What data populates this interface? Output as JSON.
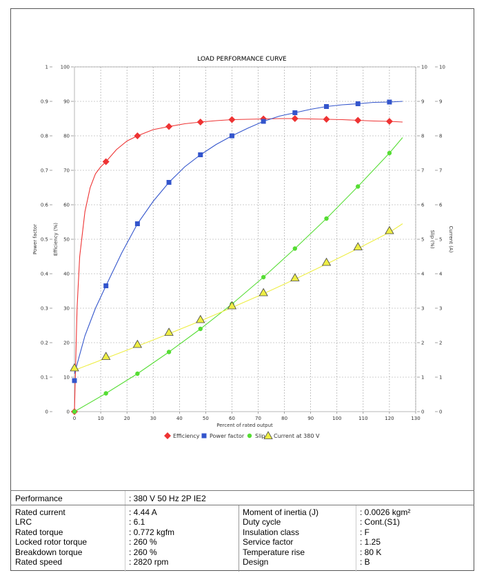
{
  "chart_data": {
    "type": "line",
    "title": "LOAD PERFORMANCE CURVE",
    "xlabel": "Percent of rated output",
    "xlim": [
      0,
      130
    ],
    "x_ticks": [
      "0",
      "10",
      "20",
      "30",
      "40",
      "50",
      "60",
      "70",
      "80",
      "90",
      "100",
      "110",
      "120",
      "130"
    ],
    "axes": {
      "power_factor": {
        "label": "Power factor",
        "range": [
          0,
          1
        ],
        "ticks": [
          "0",
          "0.1",
          "0.2",
          "0.3",
          "0.4",
          "0.5",
          "0.6",
          "0.7",
          "0.8",
          "0.9",
          "1"
        ]
      },
      "efficiency": {
        "label": "Efficiency (%)",
        "range": [
          0,
          100
        ],
        "ticks": [
          "0",
          "10",
          "20",
          "30",
          "40",
          "50",
          "60",
          "70",
          "80",
          "90",
          "100"
        ]
      },
      "slip": {
        "label": "Slip (%)",
        "range": [
          0,
          10
        ],
        "ticks": [
          "0",
          "1",
          "2",
          "3",
          "4",
          "5",
          "6",
          "7",
          "8",
          "9",
          "10"
        ]
      },
      "current": {
        "label": "Current (A)",
        "range": [
          0,
          10
        ],
        "ticks": [
          "0",
          "1",
          "2",
          "3",
          "4",
          "5",
          "6",
          "7",
          "8",
          "9",
          "10"
        ]
      }
    },
    "grid": true,
    "legend_position": "bottom",
    "series": [
      {
        "name": "Efficiency",
        "axis": "efficiency",
        "color": "#ee3333",
        "marker": "diamond",
        "points": [
          [
            0,
            0
          ],
          [
            12,
            72.5
          ],
          [
            24,
            80
          ],
          [
            36,
            82.7
          ],
          [
            48,
            84
          ],
          [
            60,
            84.7
          ],
          [
            72,
            84.9
          ],
          [
            84,
            85
          ],
          [
            96,
            84.8
          ],
          [
            108,
            84.5
          ],
          [
            120,
            84.2
          ]
        ],
        "curve": [
          [
            0,
            0
          ],
          [
            1,
            30
          ],
          [
            2,
            45
          ],
          [
            4,
            58
          ],
          [
            6,
            65
          ],
          [
            8,
            69
          ],
          [
            10,
            71
          ],
          [
            12,
            72.5
          ],
          [
            16,
            76
          ],
          [
            20,
            78.5
          ],
          [
            24,
            80
          ],
          [
            30,
            81.8
          ],
          [
            36,
            82.7
          ],
          [
            42,
            83.5
          ],
          [
            48,
            84
          ],
          [
            54,
            84.4
          ],
          [
            60,
            84.7
          ],
          [
            66,
            84.8
          ],
          [
            72,
            84.9
          ],
          [
            78,
            85
          ],
          [
            84,
            85
          ],
          [
            90,
            84.9
          ],
          [
            96,
            84.8
          ],
          [
            102,
            84.7
          ],
          [
            108,
            84.5
          ],
          [
            114,
            84.3
          ],
          [
            120,
            84.2
          ],
          [
            125,
            84
          ]
        ]
      },
      {
        "name": "Power factor",
        "axis": "power_factor",
        "color": "#3355cc",
        "marker": "square",
        "points": [
          [
            0,
            0.09
          ],
          [
            12,
            0.365
          ],
          [
            24,
            0.545
          ],
          [
            36,
            0.665
          ],
          [
            48,
            0.745
          ],
          [
            60,
            0.8
          ],
          [
            72,
            0.842
          ],
          [
            84,
            0.867
          ],
          [
            96,
            0.885
          ],
          [
            108,
            0.893
          ],
          [
            120,
            0.898
          ]
        ],
        "curve": [
          [
            0,
            0.11
          ],
          [
            4,
            0.22
          ],
          [
            8,
            0.3
          ],
          [
            12,
            0.365
          ],
          [
            18,
            0.46
          ],
          [
            24,
            0.545
          ],
          [
            30,
            0.61
          ],
          [
            36,
            0.665
          ],
          [
            42,
            0.71
          ],
          [
            48,
            0.745
          ],
          [
            54,
            0.775
          ],
          [
            60,
            0.8
          ],
          [
            66,
            0.822
          ],
          [
            72,
            0.842
          ],
          [
            78,
            0.857
          ],
          [
            84,
            0.867
          ],
          [
            90,
            0.877
          ],
          [
            96,
            0.885
          ],
          [
            102,
            0.89
          ],
          [
            108,
            0.893
          ],
          [
            114,
            0.897
          ],
          [
            120,
            0.898
          ],
          [
            125,
            0.9
          ]
        ]
      },
      {
        "name": "Slip",
        "axis": "slip",
        "color": "#55dd33",
        "marker": "circle",
        "points": [
          [
            0,
            0
          ],
          [
            12,
            0.53
          ],
          [
            24,
            1.1
          ],
          [
            36,
            1.73
          ],
          [
            48,
            2.4
          ],
          [
            60,
            3.12
          ],
          [
            72,
            3.9
          ],
          [
            84,
            4.73
          ],
          [
            96,
            5.6
          ],
          [
            108,
            6.53
          ],
          [
            120,
            7.5
          ]
        ],
        "curve": [
          [
            0,
            0
          ],
          [
            12,
            0.53
          ],
          [
            24,
            1.1
          ],
          [
            36,
            1.73
          ],
          [
            48,
            2.4
          ],
          [
            60,
            3.12
          ],
          [
            72,
            3.9
          ],
          [
            84,
            4.73
          ],
          [
            96,
            5.6
          ],
          [
            108,
            6.53
          ],
          [
            120,
            7.5
          ],
          [
            125,
            7.95
          ]
        ]
      },
      {
        "name": "Current at 380 V",
        "axis": "current",
        "color": "#eeee44",
        "marker": "triangle",
        "points": [
          [
            0,
            1.27
          ],
          [
            12,
            1.6
          ],
          [
            24,
            1.95
          ],
          [
            36,
            2.3
          ],
          [
            48,
            2.67
          ],
          [
            60,
            3.07
          ],
          [
            72,
            3.45
          ],
          [
            84,
            3.88
          ],
          [
            96,
            4.33
          ],
          [
            108,
            4.78
          ],
          [
            120,
            5.25
          ]
        ],
        "curve": [
          [
            0,
            1.2
          ],
          [
            12,
            1.55
          ],
          [
            24,
            1.9
          ],
          [
            36,
            2.26
          ],
          [
            48,
            2.63
          ],
          [
            60,
            3.02
          ],
          [
            72,
            3.42
          ],
          [
            84,
            3.84
          ],
          [
            96,
            4.28
          ],
          [
            108,
            4.73
          ],
          [
            120,
            5.2
          ],
          [
            125,
            5.45
          ]
        ]
      }
    ]
  },
  "table": {
    "performance_label": "Performance",
    "performance_value": ": 380 V 50 Hz 2P IE2",
    "left_rows": [
      {
        "label": "Rated current",
        "value": ": 4.44 A"
      },
      {
        "label": "LRC",
        "value": ": 6.1"
      },
      {
        "label": "Rated torque",
        "value": ": 0.772 kgfm"
      },
      {
        "label": "Locked rotor torque",
        "value": ": 260 %"
      },
      {
        "label": "Breakdown torque",
        "value": ": 260 %"
      },
      {
        "label": "Rated speed",
        "value": ": 2820 rpm"
      }
    ],
    "right_rows": [
      {
        "label": "Moment of inertia (J)",
        "value": ": 0.0026 kgm²"
      },
      {
        "label": "Duty cycle",
        "value": ": Cont.(S1)"
      },
      {
        "label": "Insulation class",
        "value": ": F"
      },
      {
        "label": "Service factor",
        "value": ": 1.25"
      },
      {
        "label": "Temperature rise",
        "value": ": 80 K"
      },
      {
        "label": "Design",
        "value": ": B"
      }
    ]
  }
}
